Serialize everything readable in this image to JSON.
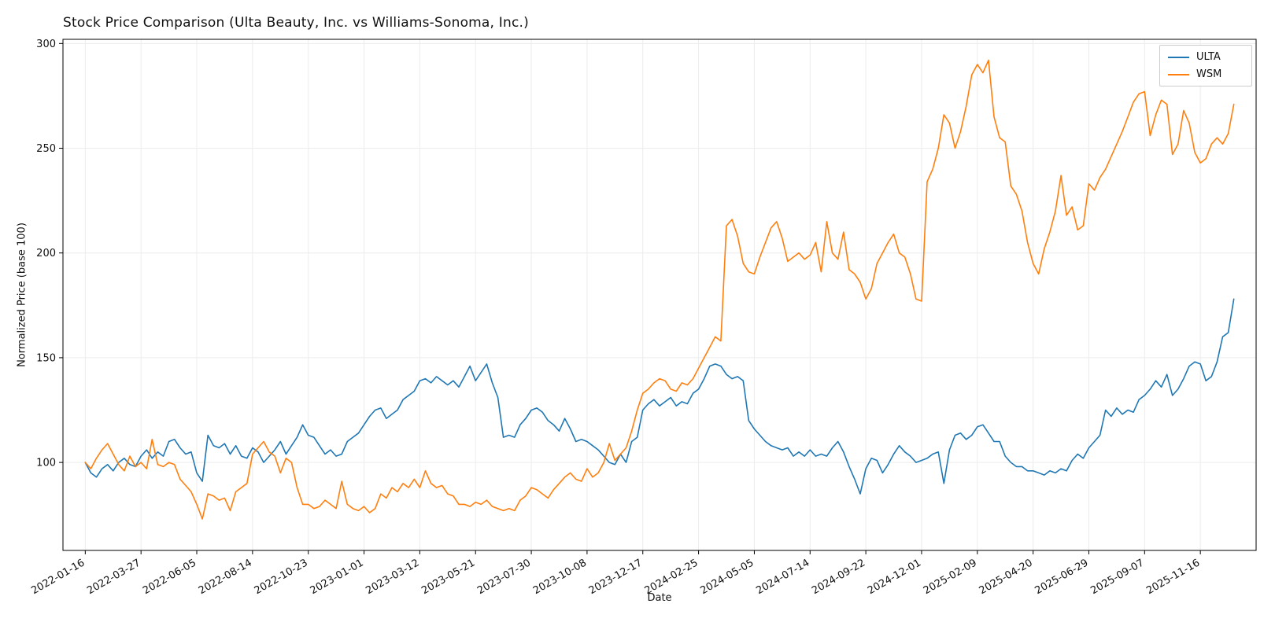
{
  "chart_data": {
    "type": "line",
    "title": "Stock Price Comparison (Ulta Beauty, Inc. vs Williams-Sonoma, Inc.)",
    "xlabel": "Date",
    "ylabel": "Normalized Price (base 100)",
    "x_unit": "weekly samples; index = weeks since 2022-01-16",
    "x_tick_positions": [
      0,
      10,
      20,
      30,
      40,
      50,
      60,
      70,
      80,
      90,
      100,
      110,
      120,
      130,
      140,
      150,
      160,
      170,
      180,
      190,
      200
    ],
    "x_tick_labels": [
      "2022-01-16",
      "2022-03-27",
      "2022-06-05",
      "2022-08-14",
      "2022-10-23",
      "2023-01-01",
      "2023-03-12",
      "2023-05-21",
      "2023-07-30",
      "2023-10-08",
      "2023-12-17",
      "2024-02-25",
      "2024-05-05",
      "2024-07-14",
      "2024-09-22",
      "2024-12-01",
      "2025-02-09",
      "2025-04-20",
      "2025-06-29",
      "2025-09-07",
      "2025-11-16"
    ],
    "yticks": [
      100,
      150,
      200,
      250,
      300
    ],
    "ylim": [
      58,
      302
    ],
    "xlim": [
      -4,
      210
    ],
    "grid": true,
    "legend_position": "upper right",
    "series": [
      {
        "name": "ULTA",
        "color": "#1f77b4",
        "values": [
          100,
          95,
          93,
          97,
          99,
          96,
          100,
          102,
          99,
          98,
          103,
          106,
          102,
          105,
          103,
          110,
          111,
          107,
          104,
          105,
          95,
          91,
          113,
          108,
          107,
          109,
          104,
          108,
          103,
          102,
          107,
          105,
          100,
          103,
          106,
          110,
          104,
          108,
          112,
          118,
          113,
          112,
          108,
          104,
          106,
          103,
          104,
          110,
          112,
          114,
          118,
          122,
          125,
          126,
          121,
          123,
          125,
          130,
          132,
          134,
          139,
          140,
          138,
          141,
          139,
          137,
          139,
          136,
          141,
          146,
          139,
          143,
          147,
          138,
          131,
          112,
          113,
          112,
          118,
          121,
          125,
          126,
          124,
          120,
          118,
          115,
          121,
          116,
          110,
          111,
          110,
          108,
          106,
          103,
          100,
          99,
          104,
          100,
          110,
          112,
          125,
          128,
          130,
          127,
          129,
          131,
          127,
          129,
          128,
          133,
          135,
          140,
          146,
          147,
          146,
          142,
          140,
          141,
          139,
          120,
          116,
          113,
          110,
          108,
          107,
          106,
          107,
          103,
          105,
          103,
          106,
          103,
          104,
          103,
          107,
          110,
          105,
          98,
          92,
          85,
          97,
          102,
          101,
          95,
          99,
          104,
          108,
          105,
          103,
          100,
          101,
          102,
          104,
          105,
          90,
          106,
          113,
          114,
          111,
          113,
          117,
          118,
          114,
          110,
          110,
          103,
          100,
          98,
          98,
          96,
          96,
          95,
          94,
          96,
          95,
          97,
          96,
          101,
          104,
          102,
          107,
          110,
          113,
          125,
          122,
          126,
          123,
          125,
          124,
          130,
          132,
          135,
          139,
          136,
          142,
          132,
          135,
          140,
          146,
          148,
          147,
          139,
          141,
          148,
          160,
          162,
          178
        ]
      },
      {
        "name": "WSM",
        "color": "#ff7f0e",
        "values": [
          100,
          97,
          102,
          106,
          109,
          104,
          99,
          96,
          103,
          98,
          100,
          97,
          111,
          99,
          98,
          100,
          99,
          92,
          89,
          86,
          80,
          73,
          85,
          84,
          82,
          83,
          77,
          86,
          88,
          90,
          104,
          107,
          110,
          105,
          103,
          95,
          102,
          100,
          88,
          80,
          80,
          78,
          79,
          82,
          80,
          78,
          91,
          80,
          78,
          77,
          79,
          76,
          78,
          85,
          83,
          88,
          86,
          90,
          88,
          92,
          88,
          96,
          90,
          88,
          89,
          85,
          84,
          80,
          80,
          79,
          81,
          80,
          82,
          79,
          78,
          77,
          78,
          77,
          82,
          84,
          88,
          87,
          85,
          83,
          87,
          90,
          93,
          95,
          92,
          91,
          97,
          93,
          95,
          100,
          109,
          101,
          104,
          107,
          115,
          125,
          133,
          135,
          138,
          140,
          139,
          135,
          134,
          138,
          137,
          140,
          145,
          150,
          155,
          160,
          158,
          213,
          216,
          208,
          195,
          191,
          190,
          198,
          205,
          212,
          215,
          207,
          196,
          198,
          200,
          197,
          199,
          205,
          191,
          215,
          200,
          197,
          210,
          192,
          190,
          186,
          178,
          183,
          195,
          200,
          205,
          209,
          200,
          198,
          190,
          178,
          177,
          234,
          240,
          250,
          266,
          262,
          250,
          258,
          270,
          285,
          290,
          286,
          292,
          265,
          255,
          253,
          232,
          228,
          220,
          205,
          195,
          190,
          202,
          210,
          220,
          237,
          218,
          222,
          211,
          213,
          233,
          230,
          236,
          240,
          246,
          252,
          258,
          265,
          272,
          276,
          277,
          256,
          266,
          273,
          271,
          247,
          252,
          268,
          262,
          248,
          243,
          245,
          252,
          255,
          252,
          257,
          271
        ]
      }
    ]
  }
}
